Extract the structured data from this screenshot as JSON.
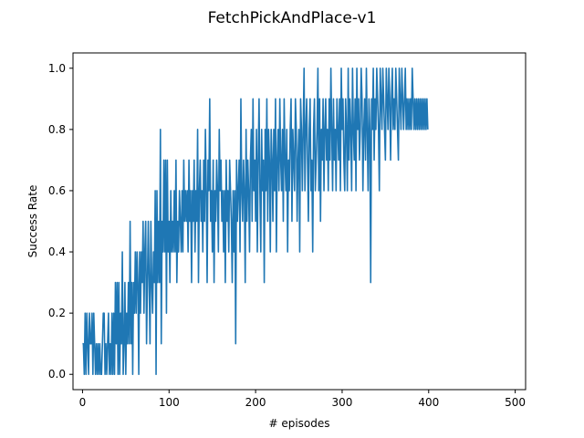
{
  "chart_data": {
    "type": "line",
    "title": "FetchPickAndPlace-v1",
    "xlabel": "# episodes",
    "ylabel": "Success Rate",
    "xlim": [
      -11,
      512
    ],
    "ylim": [
      -0.05,
      1.05
    ],
    "xticks": [
      0,
      100,
      200,
      300,
      400,
      500
    ],
    "yticks": [
      0.0,
      0.2,
      0.4,
      0.6,
      0.8,
      1.0
    ],
    "ytick_labels": [
      "0.0",
      "0.2",
      "0.4",
      "0.6",
      "0.8",
      "1.0"
    ],
    "grid": false,
    "color": "#1f77b4",
    "series": [
      {
        "x_start": 0,
        "x_step": 1,
        "values": [
          0.1,
          0.1,
          0.0,
          0.2,
          0.0,
          0.2,
          0.1,
          0.0,
          0.2,
          0.1,
          0.1,
          0.2,
          0.0,
          0.2,
          0.1,
          0.0,
          0.1,
          0.0,
          0.1,
          0.0,
          0.1,
          0.0,
          0.0,
          0.1,
          0.2,
          0.2,
          0.0,
          0.1,
          0.0,
          0.1,
          0.2,
          0.0,
          0.1,
          0.0,
          0.2,
          0.0,
          0.2,
          0.0,
          0.3,
          0.1,
          0.3,
          0.0,
          0.3,
          0.0,
          0.2,
          0.1,
          0.4,
          0.0,
          0.1,
          0.3,
          0.0,
          0.2,
          0.1,
          0.3,
          0.1,
          0.5,
          0.1,
          0.3,
          0.0,
          0.3,
          0.2,
          0.4,
          0.2,
          0.4,
          0.3,
          0.0,
          0.4,
          0.2,
          0.4,
          0.3,
          0.5,
          0.2,
          0.4,
          0.5,
          0.1,
          0.3,
          0.5,
          0.3,
          0.1,
          0.5,
          0.3,
          0.2,
          0.4,
          0.3,
          0.6,
          0.0,
          0.6,
          0.3,
          0.5,
          0.3,
          0.8,
          0.1,
          0.5,
          0.4,
          0.7,
          0.4,
          0.7,
          0.2,
          0.7,
          0.4,
          0.5,
          0.3,
          0.6,
          0.4,
          0.5,
          0.4,
          0.6,
          0.4,
          0.7,
          0.3,
          0.5,
          0.4,
          0.6,
          0.5,
          0.4,
          0.6,
          0.4,
          0.7,
          0.5,
          0.6,
          0.5,
          0.6,
          0.4,
          0.7,
          0.5,
          0.6,
          0.3,
          0.6,
          0.5,
          0.7,
          0.4,
          0.6,
          0.5,
          0.8,
          0.3,
          0.6,
          0.7,
          0.5,
          0.6,
          0.4,
          0.7,
          0.5,
          0.8,
          0.6,
          0.3,
          0.7,
          0.6,
          0.9,
          0.5,
          0.6,
          0.4,
          0.7,
          0.3,
          0.6,
          0.5,
          0.7,
          0.6,
          0.4,
          0.8,
          0.6,
          0.7,
          0.5,
          0.6,
          0.4,
          0.6,
          0.3,
          0.7,
          0.5,
          0.6,
          0.4,
          0.7,
          0.6,
          0.5,
          0.3,
          0.6,
          0.4,
          0.6,
          0.1,
          0.7,
          0.5,
          0.6,
          0.7,
          0.4,
          0.9,
          0.6,
          0.5,
          0.7,
          0.6,
          0.3,
          0.8,
          0.5,
          0.7,
          0.6,
          0.4,
          0.7,
          0.8,
          0.5,
          0.9,
          0.6,
          0.7,
          0.5,
          0.8,
          0.4,
          0.7,
          0.9,
          0.6,
          0.4,
          0.8,
          0.6,
          0.7,
          0.3,
          0.8,
          0.6,
          0.9,
          0.5,
          0.8,
          0.7,
          0.4,
          0.8,
          0.7,
          0.5,
          0.8,
          0.6,
          0.9,
          0.4,
          0.7,
          0.8,
          0.6,
          0.9,
          0.7,
          0.6,
          0.8,
          0.5,
          0.9,
          0.7,
          0.6,
          0.8,
          0.4,
          0.7,
          0.6,
          0.8,
          0.9,
          0.5,
          0.8,
          0.7,
          0.6,
          0.9,
          0.8,
          0.5,
          0.7,
          0.8,
          0.4,
          0.9,
          0.8,
          0.6,
          0.8,
          1.0,
          0.6,
          0.8,
          0.9,
          0.7,
          0.5,
          0.8,
          0.9,
          0.6,
          0.7,
          0.4,
          0.8,
          0.9,
          0.6,
          0.7,
          0.8,
          1.0,
          0.6,
          0.9,
          0.5,
          0.8,
          0.7,
          0.9,
          0.6,
          0.8,
          0.9,
          0.7,
          0.8,
          0.6,
          0.9,
          0.7,
          1.0,
          0.8,
          0.6,
          0.9,
          0.7,
          0.8,
          0.6,
          0.9,
          0.8,
          0.7,
          0.9,
          0.6,
          1.0,
          0.8,
          0.9,
          0.7,
          0.6,
          0.9,
          0.8,
          0.6,
          1.0,
          0.7,
          0.9,
          0.8,
          0.6,
          1.0,
          0.8,
          0.7,
          0.9,
          0.6,
          1.0,
          0.8,
          0.9,
          0.7,
          0.8,
          1.0,
          0.9,
          0.6,
          0.8,
          0.9,
          0.7,
          1.0,
          0.8,
          0.6,
          0.9,
          0.8,
          0.3,
          0.9,
          0.8,
          1.0,
          0.7,
          0.9,
          0.8,
          1.0,
          0.9,
          0.8,
          0.6,
          1.0,
          0.9,
          0.8,
          1.0,
          0.9,
          0.8,
          0.7,
          1.0,
          0.9,
          0.8,
          1.0,
          0.9,
          0.7,
          0.9,
          1.0,
          0.8,
          0.9,
          0.8,
          1.0,
          0.9,
          0.8,
          0.7,
          1.0,
          0.9,
          0.8,
          1.0,
          0.9,
          0.8,
          0.9,
          1.0,
          0.8,
          0.9,
          0.8,
          0.9,
          0.8,
          0.9,
          0.8,
          1.0,
          0.9,
          0.8,
          0.9,
          0.8,
          0.9,
          0.8,
          0.9,
          0.8,
          0.9,
          0.8,
          0.9,
          0.8,
          0.9,
          0.8,
          0.9,
          0.8,
          0.9,
          0.8
        ]
      }
    ]
  }
}
